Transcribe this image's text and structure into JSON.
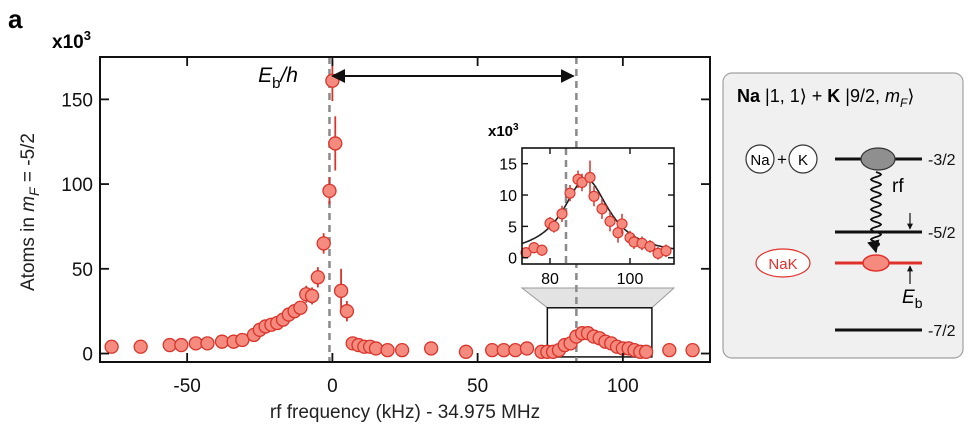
{
  "panel_label": "a",
  "colors": {
    "point_fill": "#f58b7e",
    "point_stroke": "#d9342b",
    "error_bar": "#d9342b",
    "guide_line": "#8a8a8a",
    "fit_line": "#222222",
    "zoom_shade": "#e3e3e3",
    "schematic_bg": "#f0f0f0",
    "schematic_border": "#999999",
    "nak_red": "#e0302a",
    "molecule_fill": "#f58b7e",
    "unbound_fill": "#8f8f8f"
  },
  "chart_data": [
    {
      "type": "scatter",
      "xlabel": "rf frequency (kHz) - 34.975 MHz",
      "ylabel_prefix": "Atoms in",
      "ylabel_var": "m",
      "ylabel_sub": "F",
      "ylabel_suffix": " = -5/2",
      "y_multiplier": {
        "base": "x10",
        "exp": "3"
      },
      "xlim": [
        -80,
        130
      ],
      "ylim": [
        -5,
        175
      ],
      "xticks": [
        -50,
        0,
        50,
        100
      ],
      "yticks": [
        0,
        50,
        100,
        150
      ],
      "binding_label": {
        "main": "E",
        "sub": "b",
        "rest": "/h"
      },
      "guide_lines_x": [
        -1,
        84
      ],
      "zoom_box": {
        "x": [
          74,
          110
        ],
        "y": [
          -2,
          27
        ]
      },
      "points": [
        {
          "x": -76,
          "y": 4
        },
        {
          "x": -66,
          "y": 4
        },
        {
          "x": -56,
          "y": 5
        },
        {
          "x": -52,
          "y": 5
        },
        {
          "x": -47,
          "y": 6
        },
        {
          "x": -43,
          "y": 6
        },
        {
          "x": -38,
          "y": 7
        },
        {
          "x": -34,
          "y": 7
        },
        {
          "x": -31,
          "y": 8
        },
        {
          "x": -27,
          "y": 11
        },
        {
          "x": -25,
          "y": 14
        },
        {
          "x": -23,
          "y": 16
        },
        {
          "x": -21,
          "y": 17
        },
        {
          "x": -19,
          "y": 18
        },
        {
          "x": -17,
          "y": 20
        },
        {
          "x": -15,
          "y": 23
        },
        {
          "x": -13,
          "y": 25
        },
        {
          "x": -11,
          "y": 27
        },
        {
          "x": -9,
          "y": 35,
          "err": 5
        },
        {
          "x": -7,
          "y": 34,
          "err": 5
        },
        {
          "x": -5,
          "y": 45,
          "err": 6
        },
        {
          "x": -3,
          "y": 65,
          "err": 6
        },
        {
          "x": -1,
          "y": 96,
          "err": 8
        },
        {
          "x": 0,
          "y": 161,
          "err": 12
        },
        {
          "x": 1,
          "y": 124,
          "err": 16
        },
        {
          "x": 3,
          "y": 37,
          "err": 13
        },
        {
          "x": 5,
          "y": 25,
          "err": 6
        },
        {
          "x": 7,
          "y": 6
        },
        {
          "x": 9,
          "y": 5
        },
        {
          "x": 11,
          "y": 4
        },
        {
          "x": 13,
          "y": 4
        },
        {
          "x": 15,
          "y": 3
        },
        {
          "x": 19,
          "y": 2
        },
        {
          "x": 24,
          "y": 2
        },
        {
          "x": 34,
          "y": 3
        },
        {
          "x": 46,
          "y": 1
        },
        {
          "x": 55,
          "y": 2
        },
        {
          "x": 59,
          "y": 2
        },
        {
          "x": 63,
          "y": 2
        },
        {
          "x": 67,
          "y": 3
        },
        {
          "x": 72,
          "y": 1
        },
        {
          "x": 74,
          "y": 1
        },
        {
          "x": 76,
          "y": 1
        },
        {
          "x": 78,
          "y": 2
        },
        {
          "x": 80,
          "y": 5
        },
        {
          "x": 82,
          "y": 6
        },
        {
          "x": 84,
          "y": 10
        },
        {
          "x": 86,
          "y": 12
        },
        {
          "x": 88,
          "y": 12
        },
        {
          "x": 90,
          "y": 10
        },
        {
          "x": 92,
          "y": 9
        },
        {
          "x": 94,
          "y": 7
        },
        {
          "x": 96,
          "y": 6
        },
        {
          "x": 98,
          "y": 4
        },
        {
          "x": 100,
          "y": 3
        },
        {
          "x": 102,
          "y": 3
        },
        {
          "x": 104,
          "y": 2
        },
        {
          "x": 106,
          "y": 1
        },
        {
          "x": 108,
          "y": 1
        },
        {
          "x": 116,
          "y": 2
        },
        {
          "x": 124,
          "y": 2
        }
      ]
    },
    {
      "type": "scatter",
      "title": "inset",
      "y_multiplier": {
        "base": "x10",
        "exp": "3"
      },
      "xlim": [
        73,
        111
      ],
      "ylim": [
        -1,
        17.5
      ],
      "xticks": [
        80,
        100
      ],
      "yticks": [
        0,
        5,
        10,
        15
      ],
      "guide_line_x": 84,
      "points": [
        {
          "x": 74,
          "y": 0.8,
          "err": 0.9
        },
        {
          "x": 76,
          "y": 1.6,
          "err": 0.9
        },
        {
          "x": 78,
          "y": 1.2,
          "err": 0.9
        },
        {
          "x": 80,
          "y": 5.5,
          "err": 1.0
        },
        {
          "x": 81,
          "y": 5.0,
          "err": 1.0
        },
        {
          "x": 83,
          "y": 7.0,
          "err": 1.3
        },
        {
          "x": 85,
          "y": 10.3,
          "err": 1.3
        },
        {
          "x": 87,
          "y": 12.5,
          "err": 1.4
        },
        {
          "x": 88,
          "y": 12.0,
          "err": 1.4
        },
        {
          "x": 90,
          "y": 12.8,
          "err": 2.7
        },
        {
          "x": 91,
          "y": 9.8,
          "err": 1.6
        },
        {
          "x": 93,
          "y": 7.8,
          "err": 1.6
        },
        {
          "x": 95,
          "y": 5.8,
          "err": 1.6
        },
        {
          "x": 97,
          "y": 4.0,
          "err": 1.6
        },
        {
          "x": 98,
          "y": 5.4,
          "err": 1.6
        },
        {
          "x": 100,
          "y": 3.2,
          "err": 1.1
        },
        {
          "x": 101,
          "y": 2.5,
          "err": 1.1
        },
        {
          "x": 103,
          "y": 2.3,
          "err": 1.1
        },
        {
          "x": 105,
          "y": 1.8,
          "err": 1.0
        },
        {
          "x": 107,
          "y": 0.7,
          "err": 1.0
        },
        {
          "x": 109,
          "y": 1.1,
          "err": 1.0
        }
      ],
      "fit": {
        "type": "lorentzian",
        "center": 89,
        "amplitude": 12.3,
        "hwhm": 7,
        "offset": 0.3
      }
    }
  ],
  "schematic": {
    "title": {
      "na": "Na",
      "na_state": " |1, 1⟩ + ",
      "k": "K",
      "k_state": " |9/2, ",
      "m": "m",
      "m_sub": "F",
      "tail": "⟩"
    },
    "atom_na": "Na",
    "atom_k": "K",
    "plus": "+",
    "molecule": "NaK",
    "rf": "rf",
    "levels": [
      "-3/2",
      "-5/2",
      "-7/2"
    ],
    "binding": {
      "main": "E",
      "sub": "b"
    }
  }
}
